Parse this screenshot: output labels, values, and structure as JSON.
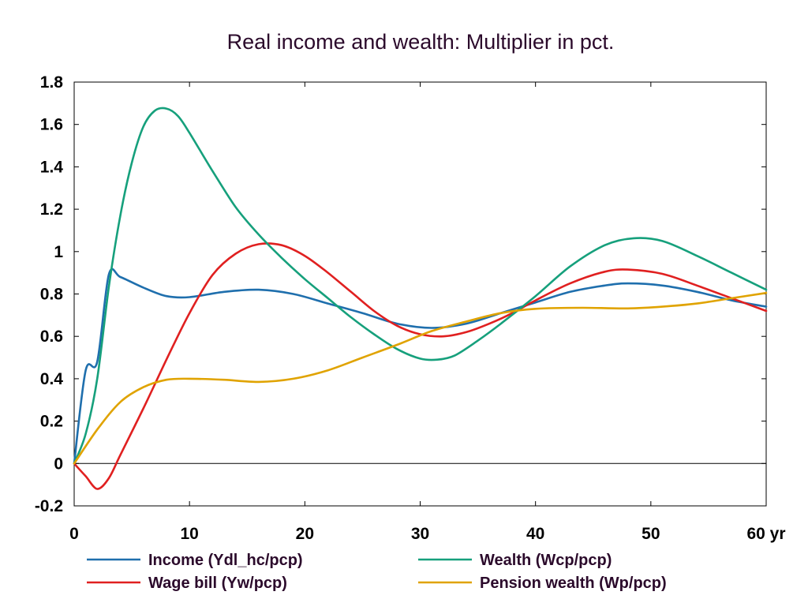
{
  "chart_data": {
    "type": "line",
    "title": "Real income and wealth: Multiplier in pct.",
    "xlabel": "",
    "ylabel": "",
    "xlim": [
      0,
      60
    ],
    "ylim": [
      -0.2,
      1.8
    ],
    "x_ticks": [
      0,
      10,
      20,
      30,
      40,
      50,
      60
    ],
    "x_tick_labels": [
      "0",
      "10",
      "20",
      "30",
      "40",
      "50",
      "60 yr"
    ],
    "y_ticks": [
      -0.2,
      0,
      0.2,
      0.4,
      0.6,
      0.8,
      1,
      1.2,
      1.4,
      1.6,
      1.8
    ],
    "y_tick_labels": [
      "-0.2",
      "0",
      "0.2",
      "0.4",
      "0.6",
      "0.8",
      "1",
      "1.2",
      "1.4",
      "1.6",
      "1.8"
    ],
    "grid": false,
    "legend_position": "bottom",
    "series": [
      {
        "name": "Income (Ydl_hc/pcp)",
        "color": "#1f6fad",
        "points": [
          [
            0,
            0
          ],
          [
            1,
            0.44
          ],
          [
            2,
            0.48
          ],
          [
            3,
            0.89
          ],
          [
            4,
            0.88
          ],
          [
            6,
            0.83
          ],
          [
            8,
            0.79
          ],
          [
            10,
            0.785
          ],
          [
            13,
            0.81
          ],
          [
            16,
            0.82
          ],
          [
            19,
            0.8
          ],
          [
            22,
            0.755
          ],
          [
            25,
            0.71
          ],
          [
            28,
            0.66
          ],
          [
            31,
            0.64
          ],
          [
            34,
            0.66
          ],
          [
            37,
            0.71
          ],
          [
            40,
            0.76
          ],
          [
            43,
            0.81
          ],
          [
            46,
            0.84
          ],
          [
            48,
            0.85
          ],
          [
            51,
            0.84
          ],
          [
            54,
            0.81
          ],
          [
            57,
            0.77
          ],
          [
            60,
            0.74
          ]
        ]
      },
      {
        "name": "Wage bill (Yw/pcp)",
        "color": "#e02020",
        "points": [
          [
            0,
            0
          ],
          [
            1,
            -0.06
          ],
          [
            2,
            -0.12
          ],
          [
            3,
            -0.07
          ],
          [
            4,
            0.04
          ],
          [
            6,
            0.26
          ],
          [
            8,
            0.49
          ],
          [
            10,
            0.71
          ],
          [
            12,
            0.89
          ],
          [
            14,
            0.99
          ],
          [
            16,
            1.035
          ],
          [
            18,
            1.03
          ],
          [
            20,
            0.98
          ],
          [
            22,
            0.9
          ],
          [
            24,
            0.81
          ],
          [
            26,
            0.72
          ],
          [
            28,
            0.65
          ],
          [
            30,
            0.61
          ],
          [
            32,
            0.6
          ],
          [
            34,
            0.62
          ],
          [
            36,
            0.66
          ],
          [
            38,
            0.71
          ],
          [
            40,
            0.77
          ],
          [
            43,
            0.85
          ],
          [
            46,
            0.905
          ],
          [
            48,
            0.915
          ],
          [
            51,
            0.895
          ],
          [
            54,
            0.84
          ],
          [
            57,
            0.78
          ],
          [
            60,
            0.72
          ]
        ]
      },
      {
        "name": "Wealth (Wcp/pcp)",
        "color": "#16a07c",
        "points": [
          [
            0,
            0
          ],
          [
            1,
            0.14
          ],
          [
            2,
            0.4
          ],
          [
            3,
            0.83
          ],
          [
            4,
            1.17
          ],
          [
            5,
            1.42
          ],
          [
            6,
            1.59
          ],
          [
            7,
            1.665
          ],
          [
            8,
            1.675
          ],
          [
            9,
            1.64
          ],
          [
            10,
            1.56
          ],
          [
            12,
            1.38
          ],
          [
            14,
            1.21
          ],
          [
            16,
            1.08
          ],
          [
            18,
            0.97
          ],
          [
            20,
            0.87
          ],
          [
            22,
            0.78
          ],
          [
            24,
            0.69
          ],
          [
            26,
            0.61
          ],
          [
            28,
            0.54
          ],
          [
            30,
            0.495
          ],
          [
            31.5,
            0.49
          ],
          [
            33,
            0.51
          ],
          [
            35,
            0.58
          ],
          [
            37,
            0.66
          ],
          [
            40,
            0.79
          ],
          [
            43,
            0.93
          ],
          [
            46,
            1.03
          ],
          [
            48.5,
            1.063
          ],
          [
            51,
            1.05
          ],
          [
            54,
            0.98
          ],
          [
            57,
            0.9
          ],
          [
            60,
            0.82
          ]
        ]
      },
      {
        "name": "Pension wealth (Wp/pcp)",
        "color": "#e0a300",
        "points": [
          [
            0,
            0
          ],
          [
            2,
            0.16
          ],
          [
            4,
            0.29
          ],
          [
            6,
            0.36
          ],
          [
            8,
            0.395
          ],
          [
            10,
            0.4
          ],
          [
            13,
            0.395
          ],
          [
            16,
            0.385
          ],
          [
            19,
            0.4
          ],
          [
            22,
            0.44
          ],
          [
            25,
            0.5
          ],
          [
            28,
            0.56
          ],
          [
            31,
            0.625
          ],
          [
            34,
            0.67
          ],
          [
            37,
            0.71
          ],
          [
            40,
            0.73
          ],
          [
            44,
            0.735
          ],
          [
            48,
            0.732
          ],
          [
            51,
            0.74
          ],
          [
            54,
            0.755
          ],
          [
            57,
            0.78
          ],
          [
            60,
            0.805
          ]
        ]
      }
    ]
  }
}
